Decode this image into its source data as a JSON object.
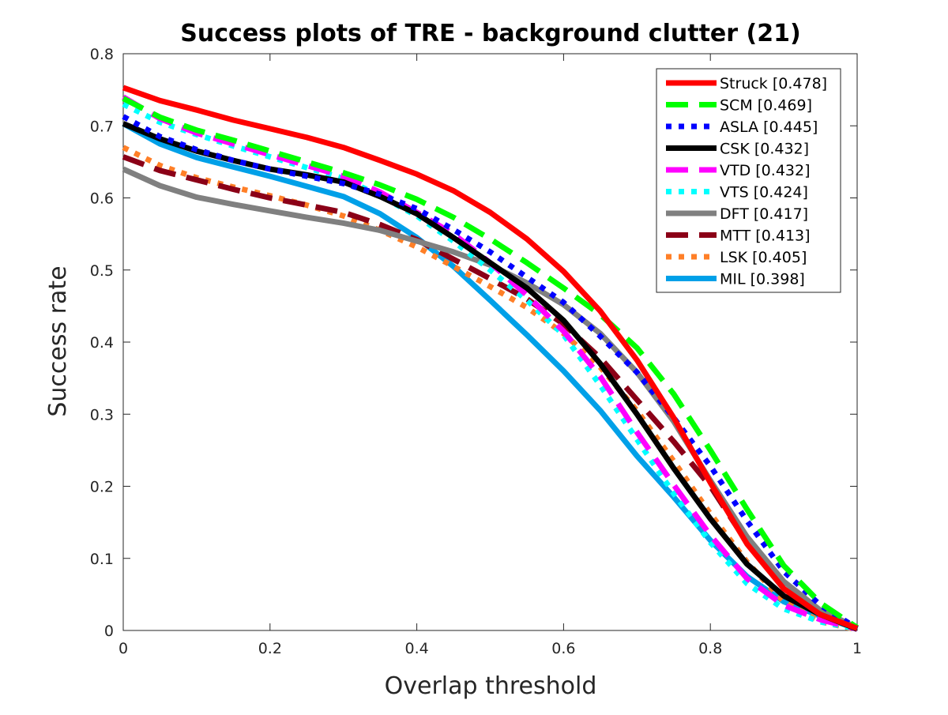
{
  "chart_data": {
    "type": "line",
    "title": "Success plots of TRE - background clutter (21)",
    "xlabel": "Overlap threshold",
    "ylabel": "Success rate",
    "xlim": [
      0,
      1
    ],
    "ylim": [
      0,
      0.8
    ],
    "xticks": [
      0,
      0.2,
      0.4,
      0.6,
      0.8,
      1
    ],
    "xtick_labels": [
      "0",
      "0.2",
      "0.4",
      "0.6",
      "0.8",
      "1"
    ],
    "yticks": [
      0,
      0.1,
      0.2,
      0.3,
      0.4,
      0.5,
      0.6,
      0.7,
      0.8
    ],
    "ytick_labels": [
      "0",
      "0.1",
      "0.2",
      "0.3",
      "0.4",
      "0.5",
      "0.6",
      "0.7",
      "0.8"
    ],
    "grid": false,
    "legend_position": "top-right",
    "x": [
      0,
      0.05,
      0.1,
      0.15,
      0.2,
      0.25,
      0.3,
      0.35,
      0.4,
      0.45,
      0.5,
      0.55,
      0.6,
      0.65,
      0.7,
      0.75,
      0.8,
      0.85,
      0.9,
      0.95,
      1
    ],
    "series": [
      {
        "name": "Struck [0.478]",
        "color": "#ff0000",
        "style": "solid",
        "values": [
          0.753,
          0.735,
          0.722,
          0.708,
          0.696,
          0.684,
          0.67,
          0.652,
          0.633,
          0.61,
          0.58,
          0.543,
          0.498,
          0.443,
          0.375,
          0.295,
          0.205,
          0.12,
          0.058,
          0.022,
          0.003
        ]
      },
      {
        "name": "SCM [0.469]",
        "color": "#00ff00",
        "style": "dash",
        "values": [
          0.738,
          0.712,
          0.694,
          0.68,
          0.665,
          0.65,
          0.635,
          0.618,
          0.598,
          0.573,
          0.543,
          0.51,
          0.475,
          0.438,
          0.392,
          0.328,
          0.25,
          0.168,
          0.09,
          0.038,
          0.004
        ]
      },
      {
        "name": "ASLA [0.445]",
        "color": "#0000ff",
        "style": "dot",
        "values": [
          0.713,
          0.685,
          0.667,
          0.652,
          0.64,
          0.63,
          0.62,
          0.605,
          0.585,
          0.556,
          0.525,
          0.49,
          0.455,
          0.408,
          0.358,
          0.295,
          0.228,
          0.152,
          0.082,
          0.035,
          0.003
        ]
      },
      {
        "name": "CSK [0.432]",
        "color": "#000000",
        "style": "solid",
        "values": [
          0.703,
          0.682,
          0.665,
          0.652,
          0.64,
          0.632,
          0.622,
          0.602,
          0.578,
          0.545,
          0.51,
          0.475,
          0.43,
          0.37,
          0.3,
          0.225,
          0.155,
          0.092,
          0.048,
          0.022,
          0.002
        ]
      },
      {
        "name": "VTD [0.432]",
        "color": "#ff00ff",
        "style": "dash",
        "values": [
          0.74,
          0.71,
          0.69,
          0.675,
          0.66,
          0.645,
          0.63,
          0.608,
          0.58,
          0.55,
          0.51,
          0.465,
          0.415,
          0.352,
          0.275,
          0.202,
          0.132,
          0.072,
          0.035,
          0.015,
          0.002
        ]
      },
      {
        "name": "VTS [0.424]",
        "color": "#00ffff",
        "style": "dot",
        "values": [
          0.73,
          0.705,
          0.688,
          0.672,
          0.657,
          0.642,
          0.627,
          0.603,
          0.575,
          0.54,
          0.5,
          0.458,
          0.41,
          0.34,
          0.265,
          0.19,
          0.122,
          0.065,
          0.03,
          0.012,
          0.002
        ]
      },
      {
        "name": "DFT [0.417]",
        "color": "#808080",
        "style": "solid",
        "values": [
          0.64,
          0.617,
          0.601,
          0.591,
          0.582,
          0.573,
          0.565,
          0.555,
          0.54,
          0.525,
          0.507,
          0.482,
          0.452,
          0.412,
          0.358,
          0.29,
          0.208,
          0.13,
          0.068,
          0.028,
          0.004
        ]
      },
      {
        "name": "MTT [0.413]",
        "color": "#8b0017",
        "style": "dash",
        "values": [
          0.657,
          0.638,
          0.625,
          0.612,
          0.6,
          0.59,
          0.58,
          0.563,
          0.542,
          0.515,
          0.488,
          0.46,
          0.425,
          0.378,
          0.32,
          0.262,
          0.2,
          0.122,
          0.06,
          0.022,
          0.002
        ]
      },
      {
        "name": "LSK [0.405]",
        "color": "#ff7f27",
        "style": "dot",
        "values": [
          0.67,
          0.645,
          0.628,
          0.615,
          0.603,
          0.59,
          0.575,
          0.555,
          0.532,
          0.505,
          0.477,
          0.448,
          0.412,
          0.365,
          0.305,
          0.235,
          0.162,
          0.095,
          0.04,
          0.012,
          0.001
        ]
      },
      {
        "name": "MIL [0.398]",
        "color": "#00a0e8",
        "style": "solid",
        "values": [
          0.703,
          0.675,
          0.656,
          0.643,
          0.63,
          0.616,
          0.602,
          0.578,
          0.545,
          0.505,
          0.458,
          0.41,
          0.36,
          0.305,
          0.242,
          0.185,
          0.125,
          0.075,
          0.04,
          0.02,
          0.002
        ]
      }
    ]
  }
}
